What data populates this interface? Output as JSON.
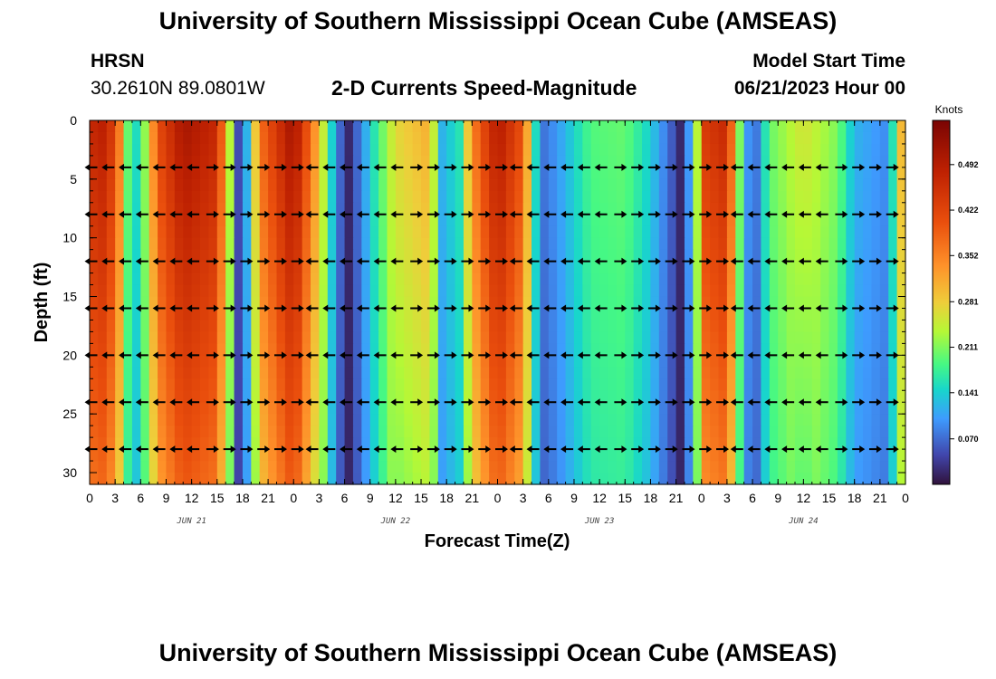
{
  "header": {
    "title": "University of Southern Mississippi Ocean Cube (AMSEAS)",
    "station": "HRSN",
    "coords": "30.2610N  89.0801W",
    "subtitle": "2-D Currents Speed-Magnitude",
    "model_start_label": "Model Start Time",
    "model_start_value": "06/21/2023 Hour 00"
  },
  "footer": {
    "title": "University of Southern Mississippi Ocean Cube (AMSEAS)"
  },
  "chart_data": {
    "type": "heatmap",
    "title": "2-D Currents Speed-Magnitude",
    "xlabel": "Forecast Time(Z)",
    "ylabel": "Depth (ft)",
    "x_hours_range": [
      0,
      96
    ],
    "x_ticks": [
      {
        "h": 0,
        "label": "0"
      },
      {
        "h": 3,
        "label": "3"
      },
      {
        "h": 6,
        "label": "6"
      },
      {
        "h": 9,
        "label": "9"
      },
      {
        "h": 12,
        "label": "12"
      },
      {
        "h": 15,
        "label": "15"
      },
      {
        "h": 18,
        "label": "18"
      },
      {
        "h": 21,
        "label": "21"
      },
      {
        "h": 24,
        "label": "0"
      },
      {
        "h": 27,
        "label": "3"
      },
      {
        "h": 30,
        "label": "6"
      },
      {
        "h": 33,
        "label": "9"
      },
      {
        "h": 36,
        "label": "12"
      },
      {
        "h": 39,
        "label": "15"
      },
      {
        "h": 42,
        "label": "18"
      },
      {
        "h": 45,
        "label": "21"
      },
      {
        "h": 48,
        "label": "0"
      },
      {
        "h": 51,
        "label": "3"
      },
      {
        "h": 54,
        "label": "6"
      },
      {
        "h": 57,
        "label": "9"
      },
      {
        "h": 60,
        "label": "12"
      },
      {
        "h": 63,
        "label": "15"
      },
      {
        "h": 66,
        "label": "18"
      },
      {
        "h": 69,
        "label": "21"
      },
      {
        "h": 72,
        "label": "0"
      },
      {
        "h": 75,
        "label": "3"
      },
      {
        "h": 78,
        "label": "6"
      },
      {
        "h": 81,
        "label": "9"
      },
      {
        "h": 84,
        "label": "12"
      },
      {
        "h": 87,
        "label": "15"
      },
      {
        "h": 90,
        "label": "18"
      },
      {
        "h": 93,
        "label": "21"
      },
      {
        "h": 96,
        "label": "0"
      }
    ],
    "day_labels": [
      {
        "h": 12,
        "label": "JUN 21"
      },
      {
        "h": 36,
        "label": "JUN 22"
      },
      {
        "h": 60,
        "label": "JUN 23"
      },
      {
        "h": 84,
        "label": "JUN 24"
      }
    ],
    "ylim": [
      0,
      31
    ],
    "y_ticks": [
      0,
      5,
      10,
      15,
      20,
      25,
      30
    ],
    "colorbar": {
      "unit": "Knots",
      "range": [
        0,
        0.56
      ],
      "ticks": [
        0.07,
        0.141,
        0.211,
        0.281,
        0.352,
        0.422,
        0.492
      ],
      "tick_labels": [
        "0.070",
        "0.141",
        "0.211",
        "0.281",
        "0.352",
        "0.422",
        "0.492"
      ]
    },
    "speed_profile": [
      {
        "h": 0,
        "v": 0.47
      },
      {
        "h": 2,
        "v": 0.49
      },
      {
        "h": 3.5,
        "v": 0.36
      },
      {
        "h": 5,
        "v": 0.12
      },
      {
        "h": 6.5,
        "v": 0.22
      },
      {
        "h": 8,
        "v": 0.41
      },
      {
        "h": 11,
        "v": 0.51
      },
      {
        "h": 15,
        "v": 0.47
      },
      {
        "h": 16.5,
        "v": 0.24
      },
      {
        "h": 17.5,
        "v": 0.05
      },
      {
        "h": 18.5,
        "v": 0.12
      },
      {
        "h": 20,
        "v": 0.37
      },
      {
        "h": 24,
        "v": 0.52
      },
      {
        "h": 27,
        "v": 0.3
      },
      {
        "h": 29,
        "v": 0.09
      },
      {
        "h": 30.5,
        "v": 0.02
      },
      {
        "h": 33,
        "v": 0.14
      },
      {
        "h": 36,
        "v": 0.27
      },
      {
        "h": 40,
        "v": 0.31
      },
      {
        "h": 41.5,
        "v": 0.12
      },
      {
        "h": 43.5,
        "v": 0.16
      },
      {
        "h": 45,
        "v": 0.35
      },
      {
        "h": 48,
        "v": 0.5
      },
      {
        "h": 51,
        "v": 0.4
      },
      {
        "h": 53,
        "v": 0.07
      },
      {
        "h": 55,
        "v": 0.1
      },
      {
        "h": 59,
        "v": 0.19
      },
      {
        "h": 63,
        "v": 0.2
      },
      {
        "h": 66,
        "v": 0.14
      },
      {
        "h": 68.5,
        "v": 0.06
      },
      {
        "h": 69.5,
        "v": 0.02
      },
      {
        "h": 71,
        "v": 0.14
      },
      {
        "h": 72.5,
        "v": 0.44
      },
      {
        "h": 75,
        "v": 0.47
      },
      {
        "h": 76.5,
        "v": 0.21
      },
      {
        "h": 78,
        "v": 0.04
      },
      {
        "h": 80,
        "v": 0.2
      },
      {
        "h": 84,
        "v": 0.26
      },
      {
        "h": 88,
        "v": 0.21
      },
      {
        "h": 90,
        "v": 0.12
      },
      {
        "h": 94,
        "v": 0.09
      },
      {
        "h": 95.5,
        "v": 0.3
      },
      {
        "h": 96,
        "v": 0.34
      }
    ],
    "vector_depths": [
      4,
      8,
      12,
      16,
      20,
      24,
      28
    ],
    "vector_hours": [
      0,
      2,
      4,
      6,
      8,
      10,
      12,
      14,
      16,
      18,
      20,
      22,
      24,
      26,
      28,
      30,
      32,
      34,
      36,
      38,
      40,
      42,
      44,
      46,
      48,
      50,
      52,
      54,
      56,
      58,
      60,
      62,
      64,
      66,
      68,
      70,
      72,
      74,
      76,
      78,
      80,
      82,
      84,
      86,
      88,
      90,
      92,
      94
    ]
  }
}
